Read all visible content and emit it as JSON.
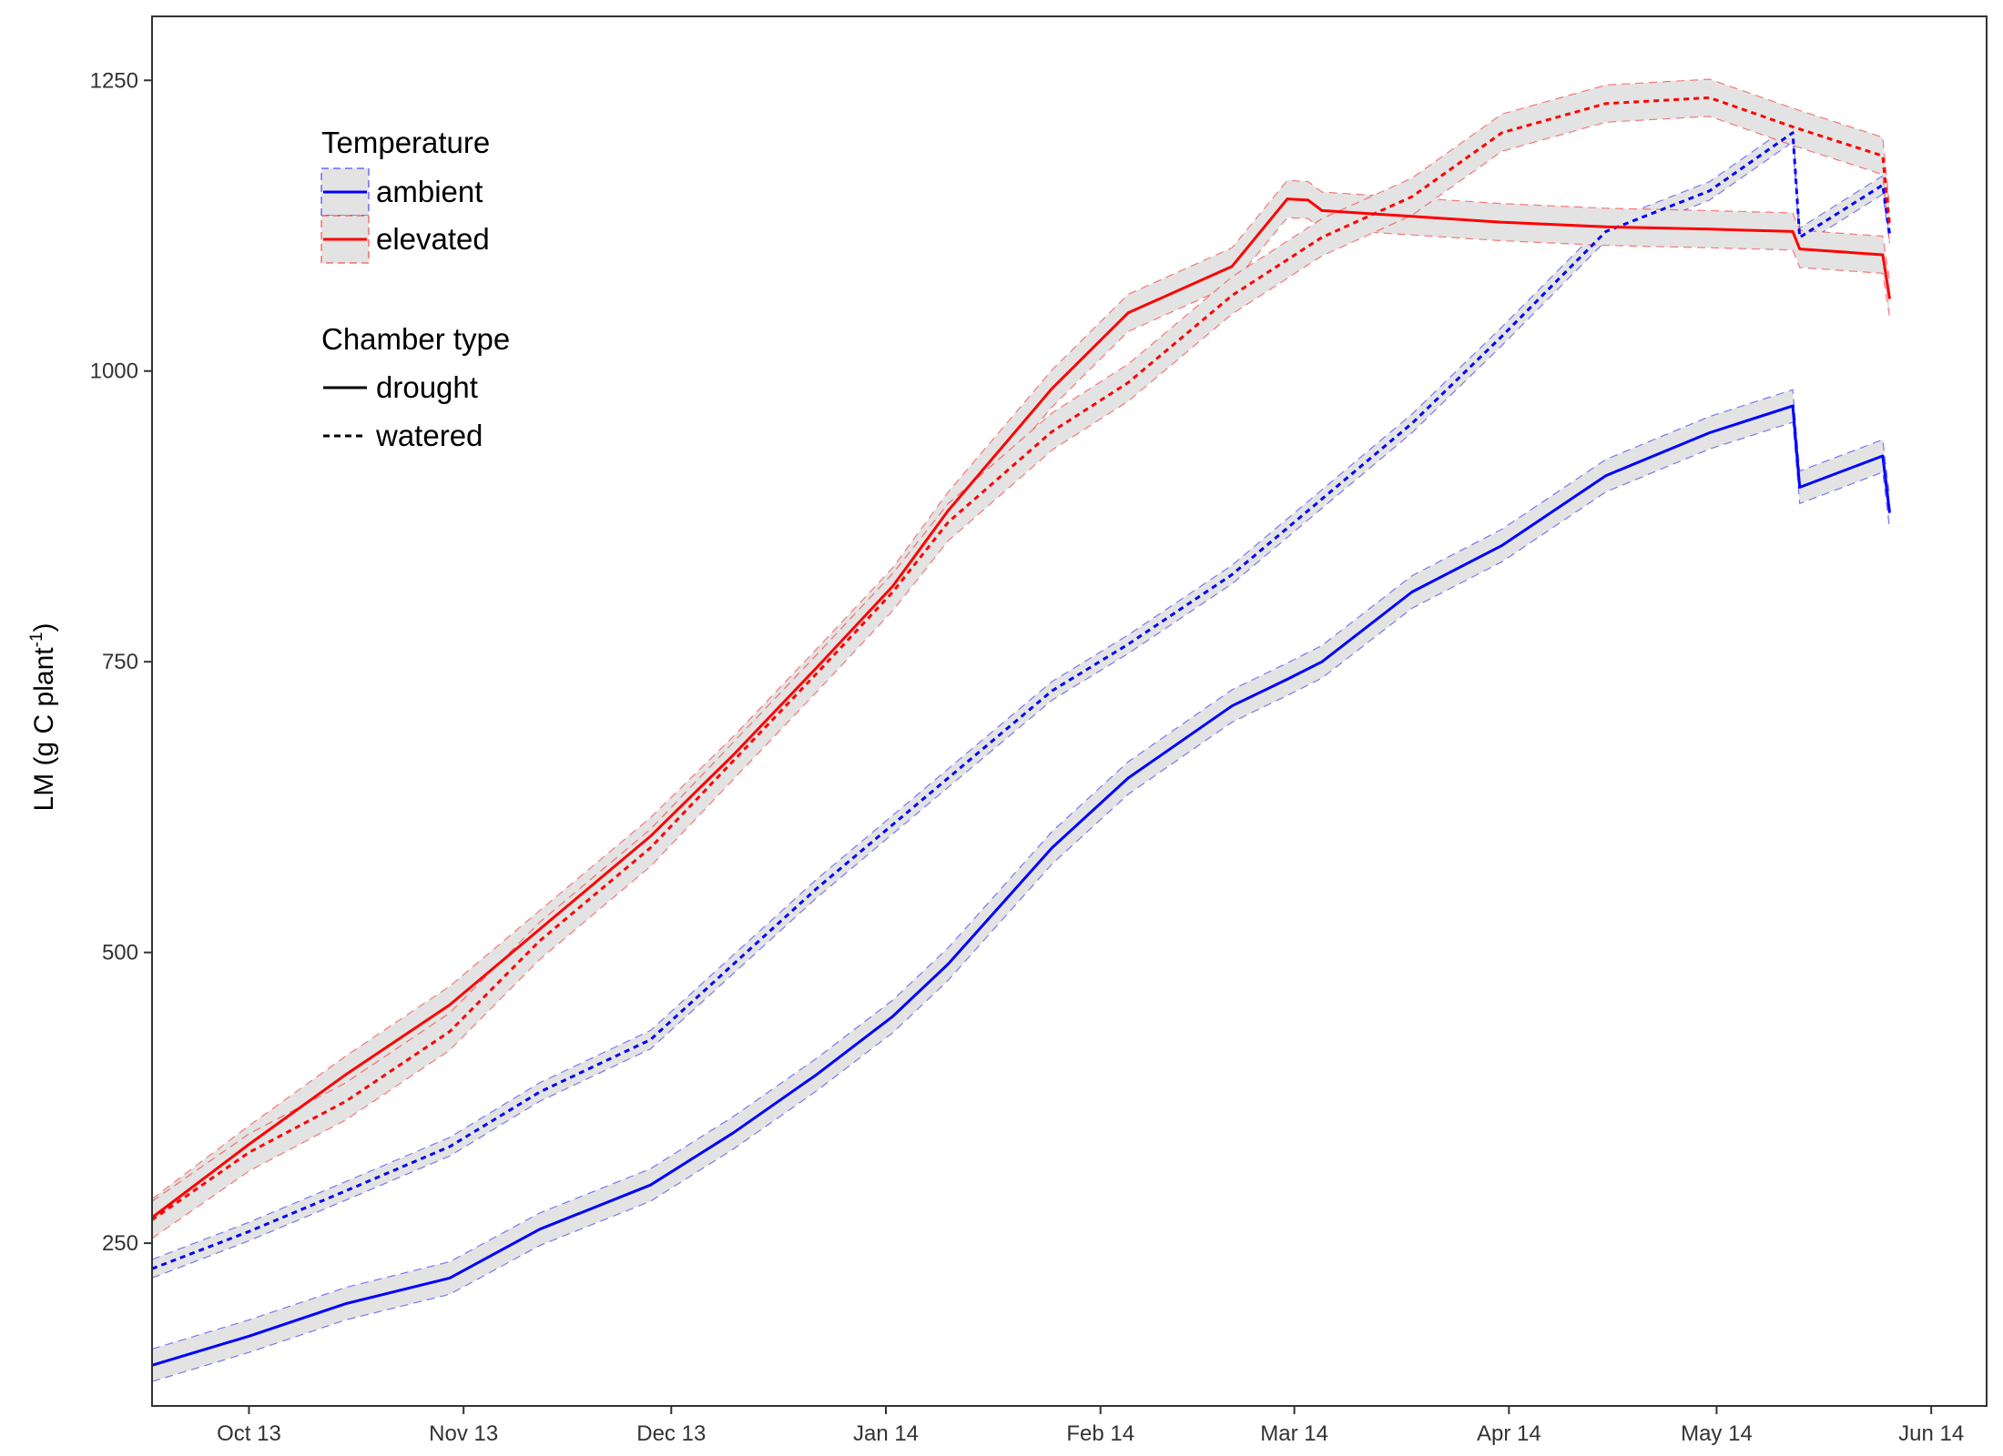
{
  "chart_data": {
    "type": "line",
    "title": "",
    "xlabel": "",
    "ylabel": {
      "main": "LM (g C plant",
      "sup": "-1",
      "close": ")"
    },
    "x_ticks": [
      "Oct 13",
      "Nov 13",
      "Dec 13",
      "Jan 14",
      "Feb 14",
      "Mar 14",
      "Apr 14",
      "May 14",
      "Jun 14"
    ],
    "x_range": [
      "2013-09-17",
      "2014-06-09"
    ],
    "y_ticks": [
      250,
      500,
      750,
      1000,
      1250
    ],
    "ylim": [
      110,
      1305
    ],
    "grid": false,
    "legend": {
      "placement": "top-left",
      "temperature_title": "Temperature",
      "temperature_items": [
        {
          "label": "ambient",
          "color": "#0000FF"
        },
        {
          "label": "elevated",
          "color": "#FF0000"
        }
      ],
      "chamber_title": "Chamber type",
      "chamber_items": [
        {
          "label": "drought",
          "linetype": "solid"
        },
        {
          "label": "watered",
          "linetype": "dashed"
        }
      ]
    },
    "band_fill": "#E3E3E3",
    "series": [
      {
        "temperature": "ambient",
        "chamber": "drought",
        "color": "#0000FF",
        "band": 14,
        "points": [
          [
            "2013-09-17",
            145
          ],
          [
            "2013-10-01",
            170
          ],
          [
            "2013-10-15",
            198
          ],
          [
            "2013-10-30",
            220
          ],
          [
            "2013-11-12",
            262
          ],
          [
            "2013-11-28",
            300
          ],
          [
            "2013-12-10",
            345
          ],
          [
            "2013-12-22",
            395
          ],
          [
            "2014-01-02",
            445
          ],
          [
            "2014-01-10",
            490
          ],
          [
            "2014-01-25",
            590
          ],
          [
            "2014-02-05",
            650
          ],
          [
            "2014-02-20",
            712
          ],
          [
            "2014-02-28",
            735
          ],
          [
            "2014-03-05",
            750
          ],
          [
            "2014-03-18",
            810
          ],
          [
            "2014-03-31",
            850
          ],
          [
            "2014-04-15",
            910
          ],
          [
            "2014-04-30",
            947
          ],
          [
            "2014-05-12",
            970
          ],
          [
            "2014-05-13",
            900
          ],
          [
            "2014-05-25",
            927
          ],
          [
            "2014-05-26",
            878
          ]
        ]
      },
      {
        "temperature": "ambient",
        "chamber": "watered",
        "color": "#0000FF",
        "band": 8,
        "points": [
          [
            "2013-09-17",
            228
          ],
          [
            "2013-10-01",
            260
          ],
          [
            "2013-10-15",
            295
          ],
          [
            "2013-10-30",
            333
          ],
          [
            "2013-11-12",
            380
          ],
          [
            "2013-11-28",
            425
          ],
          [
            "2013-12-10",
            490
          ],
          [
            "2013-12-22",
            555
          ],
          [
            "2014-01-02",
            610
          ],
          [
            "2014-01-10",
            650
          ],
          [
            "2014-01-25",
            725
          ],
          [
            "2014-02-05",
            765
          ],
          [
            "2014-02-20",
            825
          ],
          [
            "2014-03-05",
            890
          ],
          [
            "2014-03-18",
            955
          ],
          [
            "2014-03-31",
            1030
          ],
          [
            "2014-04-15",
            1120
          ],
          [
            "2014-04-30",
            1155
          ],
          [
            "2014-05-12",
            1205
          ],
          [
            "2014-05-13",
            1115
          ],
          [
            "2014-05-25",
            1160
          ],
          [
            "2014-05-26",
            1118
          ]
        ]
      },
      {
        "temperature": "elevated",
        "chamber": "drought",
        "color": "#FF0000",
        "band": 16,
        "points": [
          [
            "2013-09-17",
            272
          ],
          [
            "2013-10-01",
            335
          ],
          [
            "2013-10-15",
            395
          ],
          [
            "2013-10-30",
            455
          ],
          [
            "2013-11-12",
            520
          ],
          [
            "2013-11-28",
            600
          ],
          [
            "2013-12-10",
            670
          ],
          [
            "2013-12-22",
            745
          ],
          [
            "2014-01-02",
            815
          ],
          [
            "2014-01-10",
            880
          ],
          [
            "2014-01-25",
            985
          ],
          [
            "2014-02-05",
            1050
          ],
          [
            "2014-02-20",
            1090
          ],
          [
            "2014-02-28",
            1148
          ],
          [
            "2014-03-03",
            1147
          ],
          [
            "2014-03-05",
            1138
          ],
          [
            "2014-03-18",
            1133
          ],
          [
            "2014-03-31",
            1128
          ],
          [
            "2014-04-15",
            1124
          ],
          [
            "2014-04-30",
            1122
          ],
          [
            "2014-05-12",
            1120
          ],
          [
            "2014-05-13",
            1105
          ],
          [
            "2014-05-25",
            1100
          ],
          [
            "2014-05-26",
            1062
          ]
        ]
      },
      {
        "temperature": "elevated",
        "chamber": "watered",
        "color": "#FF0000",
        "band": 16,
        "points": [
          [
            "2013-09-17",
            270
          ],
          [
            "2013-10-01",
            328
          ],
          [
            "2013-10-15",
            372
          ],
          [
            "2013-10-30",
            432
          ],
          [
            "2013-11-12",
            510
          ],
          [
            "2013-11-28",
            590
          ],
          [
            "2013-12-10",
            665
          ],
          [
            "2013-12-22",
            740
          ],
          [
            "2014-01-02",
            810
          ],
          [
            "2014-01-10",
            870
          ],
          [
            "2014-01-25",
            948
          ],
          [
            "2014-02-05",
            990
          ],
          [
            "2014-02-20",
            1065
          ],
          [
            "2014-03-05",
            1115
          ],
          [
            "2014-03-18",
            1150
          ],
          [
            "2014-03-31",
            1205
          ],
          [
            "2014-04-15",
            1230
          ],
          [
            "2014-04-30",
            1235
          ],
          [
            "2014-05-12",
            1210
          ],
          [
            "2014-05-25",
            1185
          ],
          [
            "2014-05-26",
            1125
          ]
        ]
      }
    ]
  }
}
